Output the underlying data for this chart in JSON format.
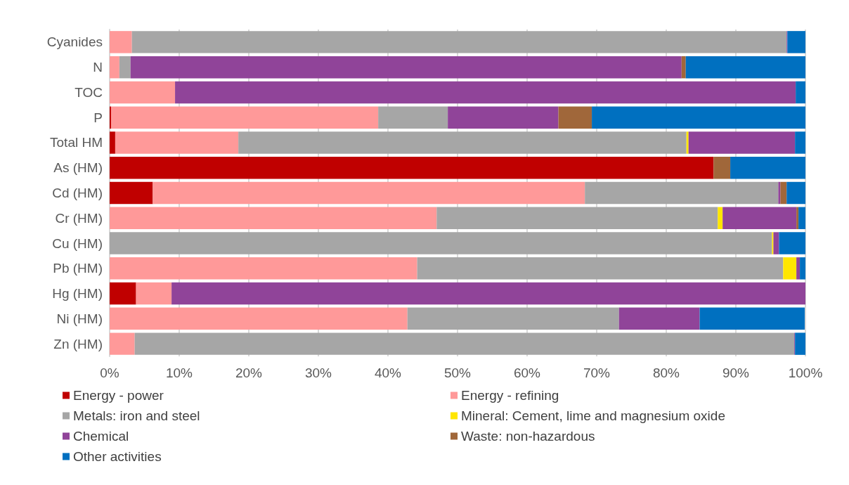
{
  "chart_data": {
    "type": "bar",
    "orientation": "horizontal",
    "stacked": true,
    "categories": [
      "Cyanides",
      "N",
      "TOC",
      "P",
      "Total HM",
      "As (HM)",
      "Cd (HM)",
      "Cr (HM)",
      "Cu (HM)",
      "Pb (HM)",
      "Hg (HM)",
      "Ni (HM)",
      "Zn (HM)"
    ],
    "series": [
      {
        "name": "Energy - power",
        "color": "#c00000",
        "values": [
          0,
          0,
          0,
          0.2,
          0.8,
          86.8,
          6.2,
          0,
          0,
          0,
          3.8,
          0,
          0
        ]
      },
      {
        "name": "Energy - refining",
        "color": "#ff9999",
        "values": [
          3.2,
          1.4,
          9.4,
          38.4,
          17.7,
          0,
          62.1,
          47.0,
          0,
          44.2,
          5.1,
          42.8,
          3.6
        ]
      },
      {
        "name": "Metals: iron and steel",
        "color": "#a6a6a6",
        "values": [
          94.1,
          1.6,
          0,
          10.0,
          64.4,
          0,
          27.8,
          40.4,
          95.2,
          52.6,
          0,
          30.4,
          94.8
        ]
      },
      {
        "name": "Mineral: Cement, lime and magnesium oxide",
        "color": "#ffe600",
        "values": [
          0,
          0,
          0,
          0,
          0.3,
          0,
          0,
          0.7,
          0.2,
          1.9,
          0,
          null,
          0
        ]
      },
      {
        "name": "Chemical",
        "color": "#904499",
        "values": [
          0.1,
          79.2,
          89.2,
          15.9,
          15.3,
          0,
          0.3,
          10.6,
          0.8,
          0.5,
          91.1,
          11.6,
          0.1
        ]
      },
      {
        "name": "Waste: non-hazardous",
        "color": "#a0673a",
        "values": [
          0,
          0.6,
          0,
          4.8,
          0,
          2.4,
          0.9,
          0.3,
          0,
          0,
          0,
          0,
          0
        ]
      },
      {
        "name": "Other activities",
        "color": "#0070c0",
        "values": [
          2.6,
          17.2,
          1.4,
          30.7,
          1.5,
          10.8,
          2.7,
          1.0,
          3.8,
          0.8,
          0,
          15.1,
          1.5
        ]
      }
    ],
    "xlim": [
      0,
      100
    ],
    "xticks": [
      {
        "value": 0,
        "label": "0%"
      },
      {
        "value": 10,
        "label": "10%"
      },
      {
        "value": 20,
        "label": "20%"
      },
      {
        "value": 30,
        "label": "30%"
      },
      {
        "value": 40,
        "label": "40%"
      },
      {
        "value": 50,
        "label": "50%"
      },
      {
        "value": 60,
        "label": "60%"
      },
      {
        "value": 70,
        "label": "70%"
      },
      {
        "value": 80,
        "label": "80%"
      },
      {
        "value": 90,
        "label": "90%"
      },
      {
        "value": 100,
        "label": "100%"
      }
    ],
    "grid": "x",
    "legend": "bottom"
  }
}
